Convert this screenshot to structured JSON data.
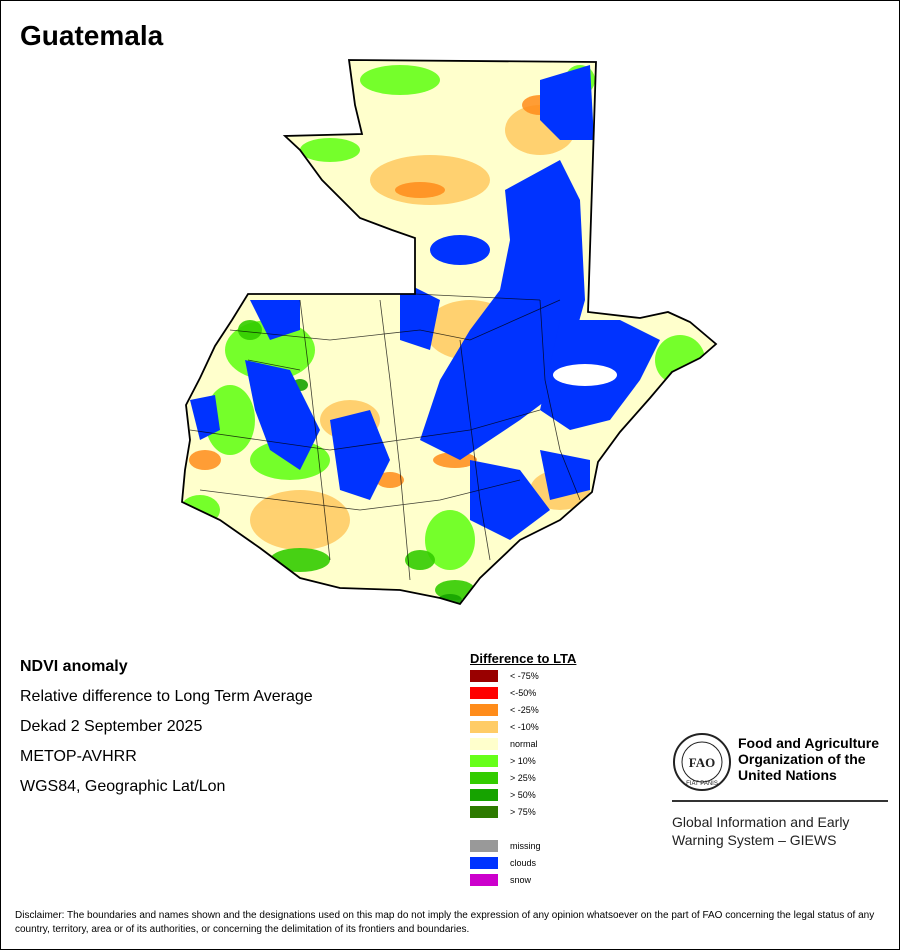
{
  "title": "Guatemala",
  "map": {
    "country": "Guatemala",
    "description_icon": "ndvi-anomaly-map"
  },
  "info": {
    "heading": "NDVI anomaly",
    "line1": "Relative difference to Long Term Average",
    "line2": "Dekad 2 September 2025",
    "line3": "METOP-AVHRR",
    "line4": "WGS84, Geographic Lat/Lon"
  },
  "legend": {
    "title": "Difference to LTA",
    "classes": [
      {
        "label": "< -75%",
        "color": "#990000"
      },
      {
        "label": "<-50%",
        "color": "#ff0000"
      },
      {
        "label": "< -25%",
        "color": "#ff8c1a"
      },
      {
        "label": "< -10%",
        "color": "#ffcc66"
      },
      {
        "label": "normal",
        "color": "#ffffcc"
      },
      {
        "label": "> 10%",
        "color": "#66ff19"
      },
      {
        "label": "> 25%",
        "color": "#33cc00"
      },
      {
        "label": "> 50%",
        "color": "#16a300"
      },
      {
        "label": "> 75%",
        "color": "#2d7a00"
      }
    ],
    "extra": [
      {
        "label": "missing",
        "color": "#999999"
      },
      {
        "label": "clouds",
        "color": "#0033ff"
      },
      {
        "label": "snow",
        "color": "#cc00cc"
      }
    ]
  },
  "org": {
    "logo_text": "FAO",
    "logo_motto": "FIAT PANIS",
    "name": "Food and Agriculture Organization of the United Nations",
    "system": "Global Information and Early Warning System – GIEWS"
  },
  "disclaimer": "Disclaimer: The boundaries and names shown and the designations used on this map do not imply the expression of any opinion whatsoever on the part of FAO concerning the legal status of any country, territory, area or of its authorities, or concerning the delimitation of its frontiers and boundaries."
}
